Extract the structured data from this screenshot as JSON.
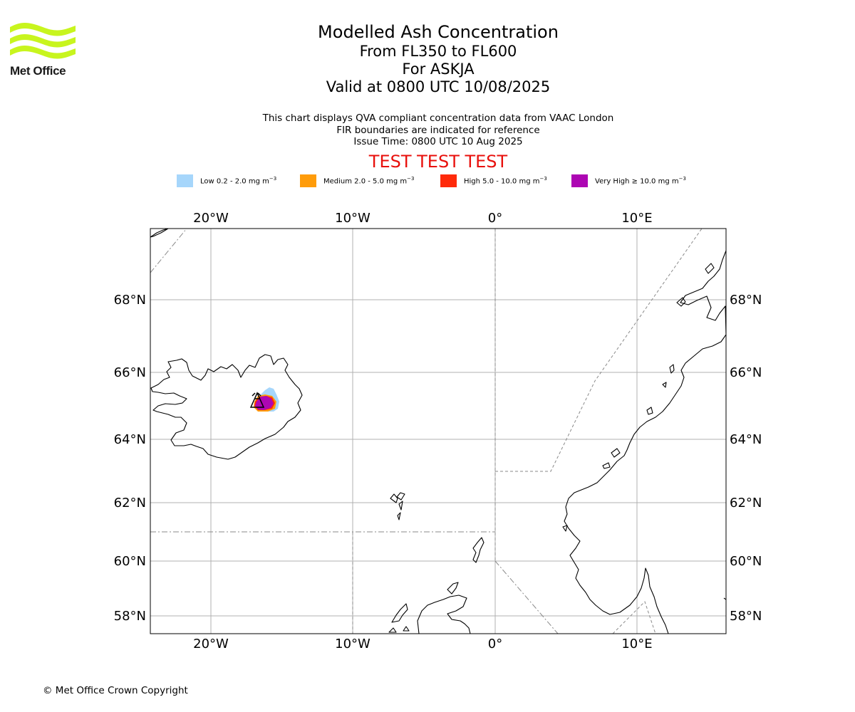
{
  "branding": {
    "logo_text": "Met Office",
    "logo_color": "#c8f51e"
  },
  "title": {
    "line1": "Modelled Ash Concentration",
    "line2": "From FL350 to FL600",
    "line3": "For ASKJA",
    "line4": "Valid at 0800 UTC 10/08/2025"
  },
  "subtitle": {
    "line1": "This chart displays QVA compliant concentration data from VAAC London",
    "line2": "FIR boundaries are indicated for reference",
    "line3": "Issue Time: 0800 UTC 10 Aug 2025"
  },
  "test_banner": "TEST TEST TEST",
  "legend": [
    {
      "label": "Low 0.2 - 2.0 mg m",
      "color": "#a6d6fb"
    },
    {
      "label": "Medium 2.0 - 5.0 mg m",
      "color": "#ff9c0a"
    },
    {
      "label": "High 5.0 - 10.0 mg m",
      "color": "#ff2a0a"
    },
    {
      "label": "Very High ≥ 10.0 mg m",
      "color": "#ad06b3"
    }
  ],
  "legend_unit_exponent": "−3",
  "map": {
    "lon_ticks": [
      "20°W",
      "10°W",
      "0°",
      "10°E"
    ],
    "lat_ticks": [
      "68°N",
      "66°N",
      "64°N",
      "62°N",
      "60°N",
      "58°N"
    ],
    "volcano": "ASKJA"
  },
  "footer": "© Met Office Crown Copyright"
}
